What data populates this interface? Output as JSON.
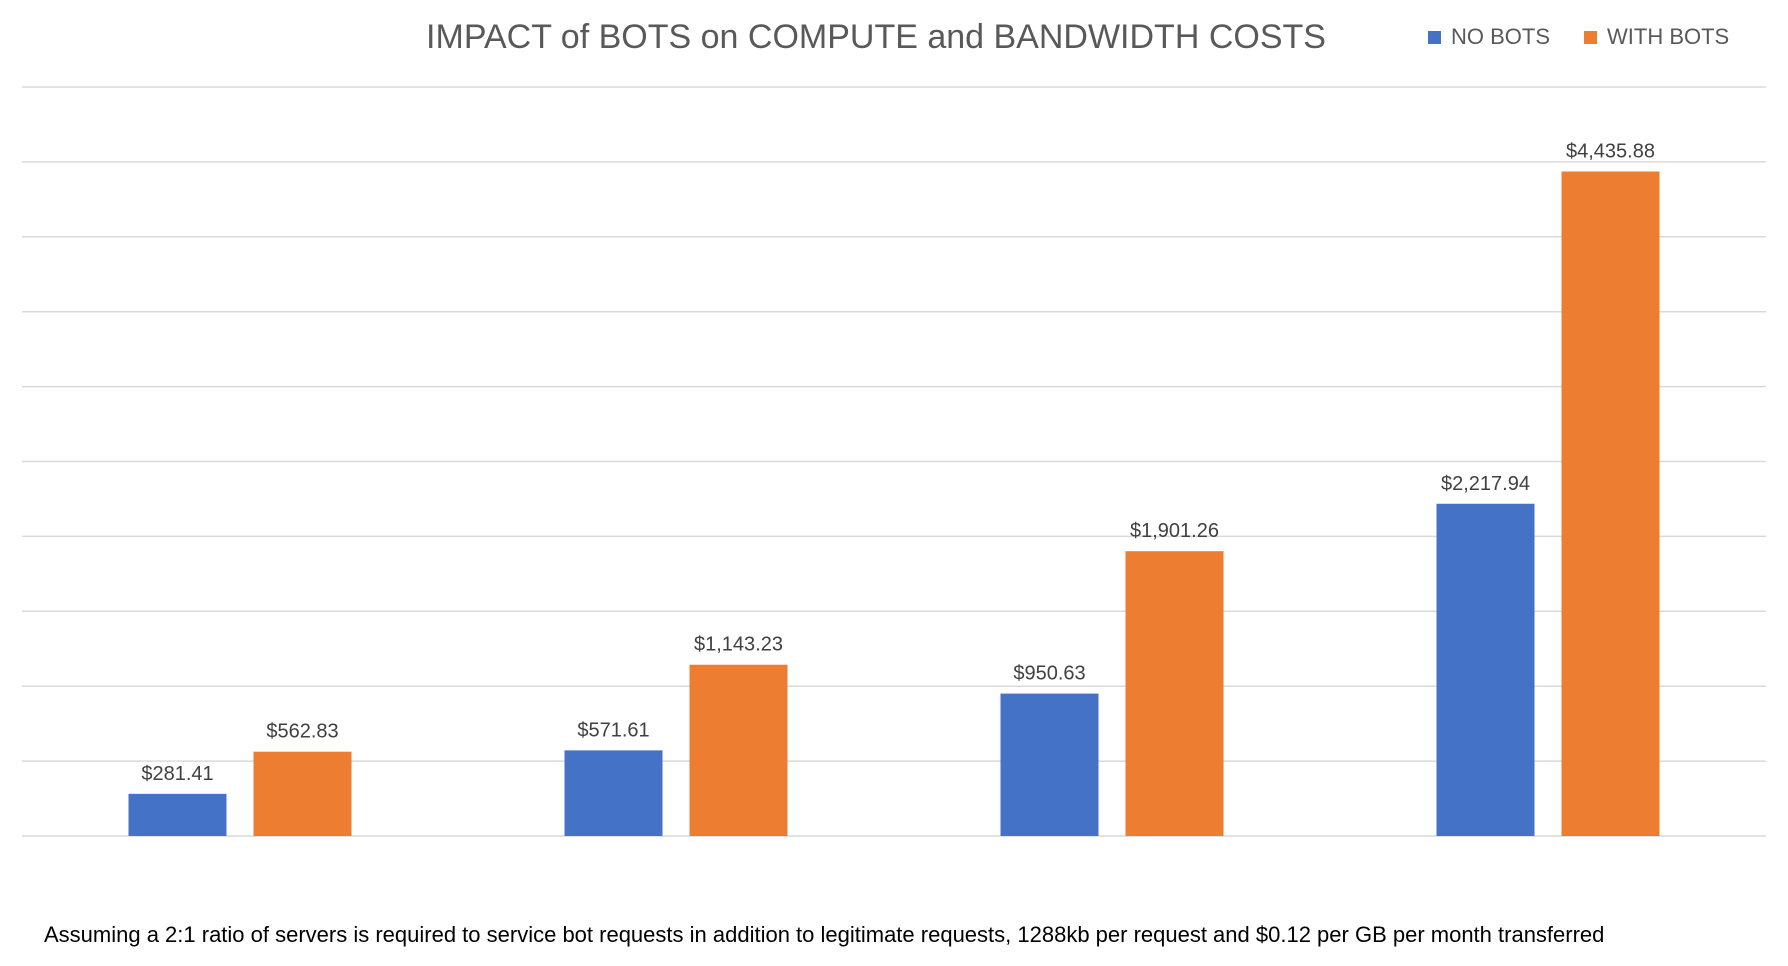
{
  "chart_data": {
    "type": "bar",
    "title": "IMPACT of BOTS on COMPUTE and BANDWIDTH COSTS",
    "categories": [
      "",
      "",
      "",
      ""
    ],
    "series": [
      {
        "name": "NO BOTS",
        "color": "#4472C4",
        "values": [
          281.41,
          571.61,
          950.63,
          2217.94
        ],
        "labels": [
          "$281.41",
          "$571.61",
          "$950.63",
          "$2,217.94"
        ]
      },
      {
        "name": "WITH BOTS",
        "color": "#ED7D31",
        "values": [
          562.83,
          1143.23,
          1901.26,
          4435.88
        ],
        "labels": [
          "$562.83",
          "$1,143.23",
          "$1,901.26",
          "$4,435.88"
        ]
      }
    ],
    "ylim": [
      0,
      5000
    ],
    "grid": true,
    "legend_position": "top-right"
  },
  "footnote": "Assuming a 2:1 ratio of servers is required to service bot requests in addition to legitimate requests, 1288kb per request and $0.12 per GB per month  transferred"
}
